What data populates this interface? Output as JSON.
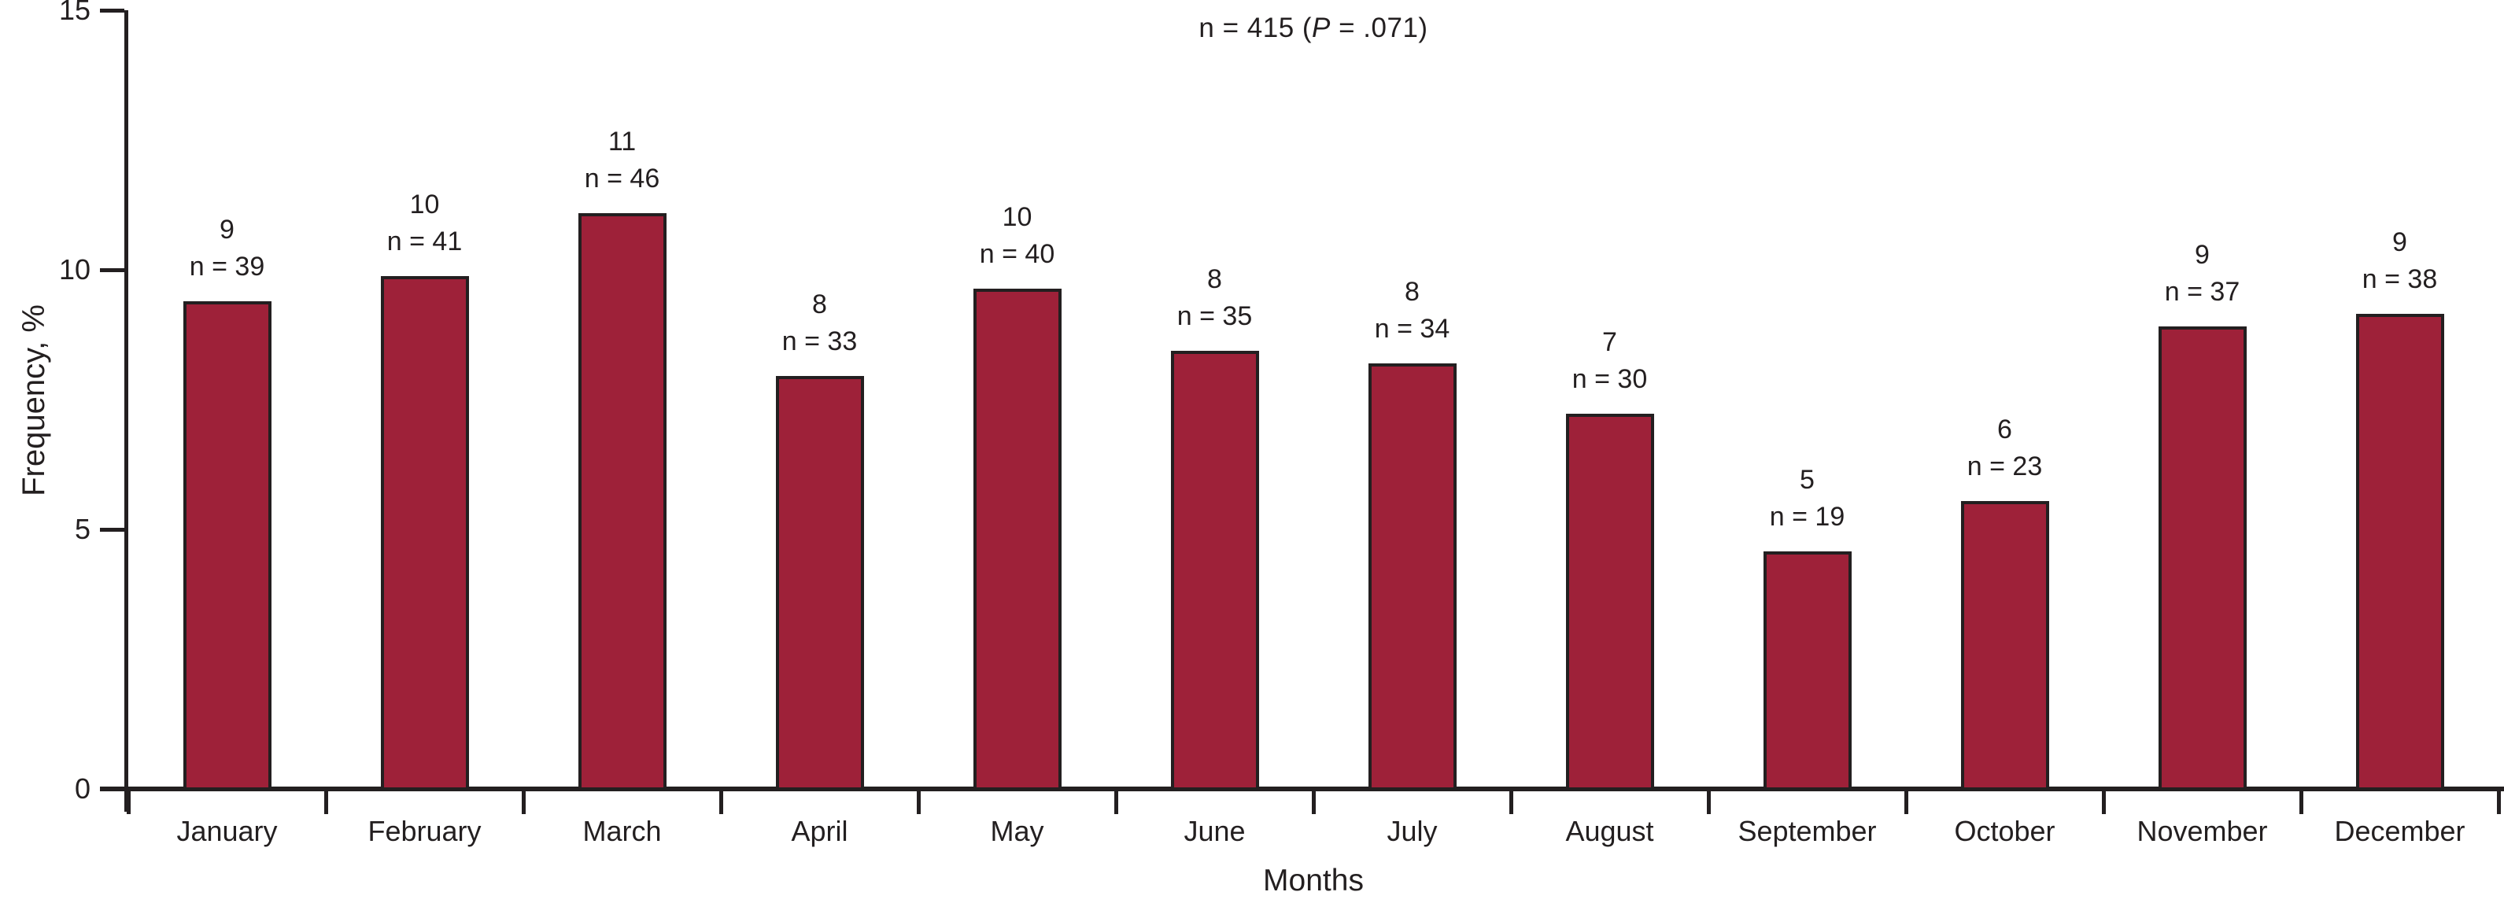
{
  "figure": {
    "annotation": {
      "prefix": "n = 415 (",
      "p_symbol": "P",
      "suffix": " = .071)"
    }
  },
  "chart_data": {
    "type": "bar",
    "title": "n = 415 (P = .071)",
    "xlabel": "Months",
    "ylabel": "Frequency, %",
    "ylim": [
      0,
      15
    ],
    "yticks": [
      0,
      5,
      10,
      15
    ],
    "grid": false,
    "legend": "none",
    "total_n": 415,
    "p_value": ".071",
    "categories": [
      "January",
      "February",
      "March",
      "April",
      "May",
      "June",
      "July",
      "August",
      "September",
      "October",
      "November",
      "December"
    ],
    "series": [
      {
        "name": "Frequency, %",
        "values_percent": [
          9,
          10,
          11,
          8,
          10,
          8,
          8,
          7,
          5,
          6,
          9,
          9
        ],
        "values_n": [
          39,
          41,
          46,
          33,
          40,
          35,
          34,
          30,
          19,
          23,
          37,
          38
        ]
      }
    ],
    "bar_labels_line1": [
      "9",
      "10",
      "11",
      "8",
      "10",
      "8",
      "8",
      "7",
      "5",
      "6",
      "9",
      "9"
    ],
    "bar_labels_line2": [
      "n = 39",
      "n = 41",
      "n = 46",
      "n = 33",
      "n = 40",
      "n = 35",
      "n = 34",
      "n = 30",
      "n = 19",
      "n = 23",
      "n = 37",
      "n = 38"
    ],
    "bar_color": "#9E2139",
    "bar_edge_color": "#231F20",
    "axis_color": "#231F20",
    "text_color": "#231F20"
  }
}
